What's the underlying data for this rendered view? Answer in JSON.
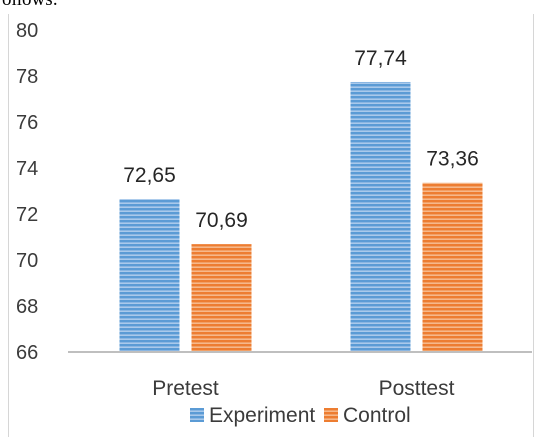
{
  "top_text": "ollows:",
  "chart_data": {
    "type": "bar",
    "categories": [
      "Pretest",
      "Posttest"
    ],
    "series": [
      {
        "name": "Experiment",
        "values": [
          72.65,
          77.74
        ],
        "labels": [
          "72,65",
          "77,74"
        ],
        "color": "#5b9bd5"
      },
      {
        "name": "Control",
        "values": [
          70.69,
          73.36
        ],
        "labels": [
          "70,69",
          "73,36"
        ],
        "color": "#ed7d31"
      }
    ],
    "ylim": [
      66,
      80
    ],
    "yticks": [
      "66",
      "68",
      "70",
      "72",
      "74",
      "76",
      "78",
      "80"
    ],
    "ytick_values": [
      66,
      68,
      70,
      72,
      74,
      76,
      78,
      80
    ],
    "grid": false,
    "legend": "bottom",
    "bar_fill_pattern": "horizontal-stripes"
  }
}
